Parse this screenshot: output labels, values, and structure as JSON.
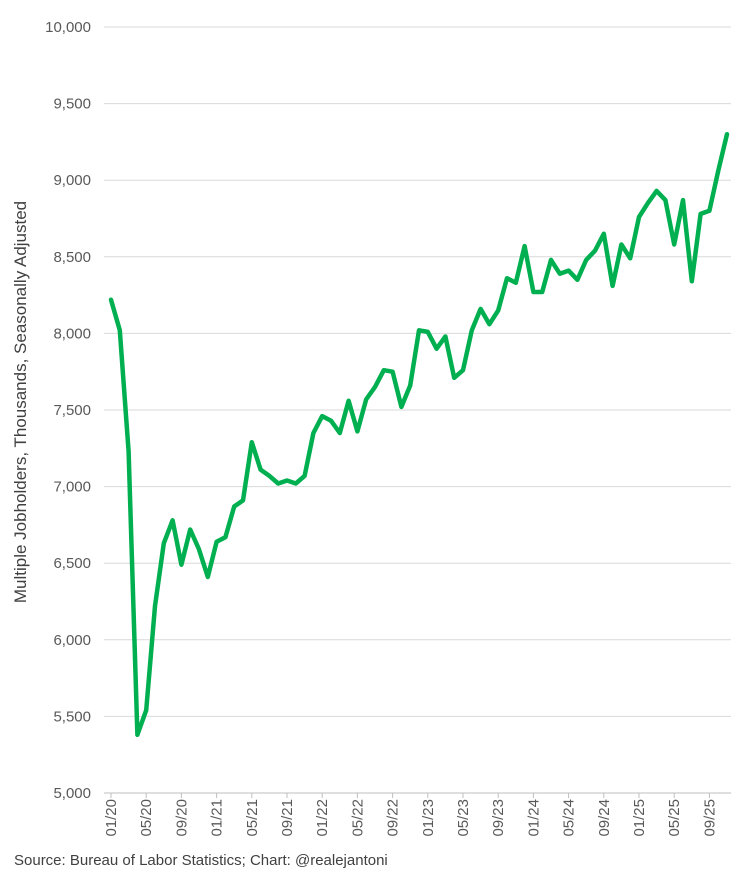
{
  "chart_data": {
    "type": "line",
    "ylabel": "Multiple Jobholders, Thousands, Seasonally Adjusted",
    "ylim": [
      5000,
      10000
    ],
    "yticks": [
      5000,
      5500,
      6000,
      6500,
      7000,
      7500,
      8000,
      8500,
      9000,
      9500,
      10000
    ],
    "ytick_labels": [
      "5,000",
      "5,500",
      "6,000",
      "6,500",
      "7,000",
      "7,500",
      "8,000",
      "8,500",
      "9,000",
      "9,500",
      "10,000"
    ],
    "xtick_labels": [
      "01/20",
      "05/20",
      "09/20",
      "01/21",
      "05/21",
      "09/21",
      "01/22",
      "05/22",
      "09/22",
      "01/23",
      "05/23",
      "09/23",
      "01/24",
      "05/24",
      "09/24",
      "01/25",
      "05/25",
      "09/25"
    ],
    "grid": true,
    "line_color": "#00B050",
    "series": [
      {
        "values": [
          8220,
          8020,
          7230,
          5380,
          5540,
          6220,
          6630,
          6780,
          6490,
          6720,
          6590,
          6410,
          6640,
          6670,
          6870,
          6910,
          7290,
          7110,
          7070,
          7020,
          7040,
          7020,
          7070,
          7350,
          7460,
          7430,
          7350,
          7560,
          7360,
          7570,
          7650,
          7760,
          7750,
          7520,
          7660,
          8020,
          8010,
          7900,
          7980,
          7710,
          7760,
          8020,
          8160,
          8060,
          8150,
          8360,
          8330,
          8570,
          8270,
          8270,
          8480,
          8390,
          8410,
          8350,
          8480,
          8540,
          8650,
          8310,
          8580,
          8490,
          8760,
          8850,
          8930,
          8870,
          8580,
          8870,
          8340,
          8780,
          8800,
          9060,
          9300
        ]
      }
    ]
  },
  "source": "Source: Bureau of Labor Statistics; Chart: @realejantoni"
}
